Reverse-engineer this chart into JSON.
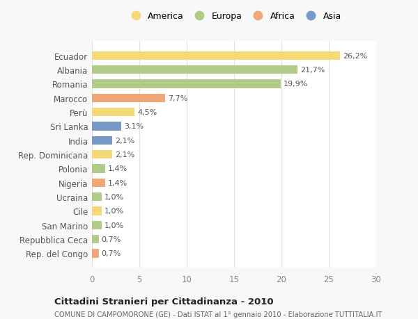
{
  "categories": [
    "Rep. del Congo",
    "Repubblica Ceca",
    "San Marino",
    "Cile",
    "Ucraina",
    "Nigeria",
    "Polonia",
    "Rep. Dominicana",
    "India",
    "Sri Lanka",
    "Perù",
    "Marocco",
    "Romania",
    "Albania",
    "Ecuador"
  ],
  "values": [
    0.7,
    0.7,
    1.0,
    1.0,
    1.0,
    1.4,
    1.4,
    2.1,
    2.1,
    3.1,
    4.5,
    7.7,
    19.9,
    21.7,
    26.2
  ],
  "labels": [
    "0,7%",
    "0,7%",
    "1,0%",
    "1,0%",
    "1,0%",
    "1,4%",
    "1,4%",
    "2,1%",
    "2,1%",
    "3,1%",
    "4,5%",
    "7,7%",
    "19,9%",
    "21,7%",
    "26,2%"
  ],
  "colors": [
    "#f0a878",
    "#b0cc88",
    "#b0cc88",
    "#f5d878",
    "#b0cc88",
    "#f0a878",
    "#b0cc88",
    "#f5d878",
    "#7898c8",
    "#7898c8",
    "#f5d878",
    "#f0a878",
    "#b0cc88",
    "#b0cc88",
    "#f5d878"
  ],
  "legend_labels": [
    "America",
    "Europa",
    "Africa",
    "Asia"
  ],
  "legend_colors": [
    "#f5d878",
    "#b0cc88",
    "#f0a878",
    "#7898c8"
  ],
  "title": "Cittadini Stranieri per Cittadinanza - 2010",
  "subtitle": "COMUNE DI CAMPOMORONE (GE) - Dati ISTAT al 1° gennaio 2010 - Elaborazione TUTTITALIA.IT",
  "xlim": [
    0,
    30
  ],
  "xticks": [
    0,
    5,
    10,
    15,
    20,
    25,
    30
  ],
  "background_color": "#f8f8f8",
  "bar_background": "#ffffff",
  "grid_color": "#e0e0e0"
}
